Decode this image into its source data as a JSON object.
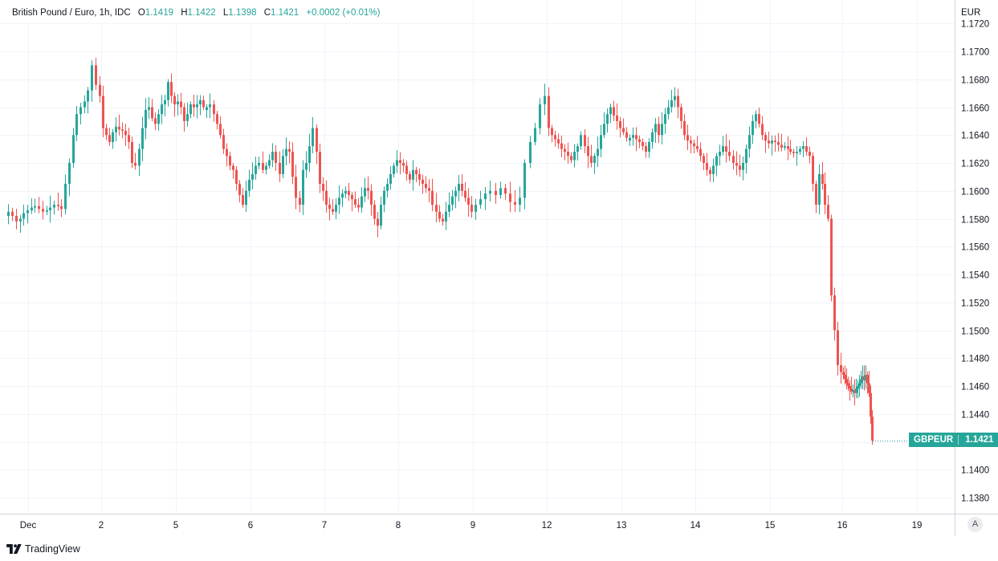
{
  "header": {
    "symbol_title": "British Pound / Euro, 1h, IDC",
    "open_label": "O",
    "open_value": "1.1419",
    "high_label": "H",
    "high_value": "1.1422",
    "low_label": "L",
    "low_value": "1.1398",
    "close_label": "C",
    "close_value": "1.1421",
    "change": "+0.0002 (+0.01%)"
  },
  "axis_currency": "EUR",
  "price_tag": {
    "symbol": "GBPEUR",
    "value": "1.1421"
  },
  "auto_scale_button": "A",
  "brand": "TradingView",
  "colors": {
    "up": "#26a69a",
    "down": "#ef5350",
    "grid": "#f0f3fa",
    "axis_text": "#131722"
  },
  "chart_data": {
    "type": "candlestick",
    "title": "British Pound / Euro, 1h, IDC",
    "x_tick_labels": [
      "Dec",
      "2",
      "5",
      "6",
      "7",
      "8",
      "9",
      "12",
      "13",
      "14",
      "15",
      "16",
      "19"
    ],
    "y_tick_labels": [
      "1.1720",
      "1.1700",
      "1.1680",
      "1.1660",
      "1.1640",
      "1.1620",
      "1.1600",
      "1.1580",
      "1.1560",
      "1.1540",
      "1.1520",
      "1.1500",
      "1.1480",
      "1.1460",
      "1.1440",
      "1.1420",
      "1.1400",
      "1.1380"
    ],
    "ylim": [
      1.137,
      1.1725
    ],
    "grid": true,
    "last_close": 1.1421,
    "approx_close_path": [
      {
        "session": "Dec",
        "values": [
          1.1585,
          1.1582,
          1.1578,
          1.158,
          1.1584,
          1.1586,
          1.1588,
          1.1589,
          1.1587,
          1.1585,
          1.1586,
          1.1588,
          1.159,
          1.1589,
          1.1587,
          1.1605,
          1.162,
          1.164,
          1.1655,
          1.166,
          1.1664,
          1.1672,
          1.169,
          1.1676,
          1.1668
        ]
      },
      {
        "session": "2",
        "values": [
          1.1645,
          1.164,
          1.1635,
          1.1642,
          1.1646,
          1.1644,
          1.1643,
          1.164,
          1.1635,
          1.162,
          1.1618,
          1.163,
          1.1645,
          1.1658,
          1.166,
          1.1652,
          1.1648,
          1.1655,
          1.1662,
          1.1665,
          1.1678,
          1.1668,
          1.1662
        ]
      },
      {
        "session": "5",
        "values": [
          1.1664,
          1.166,
          1.165,
          1.1655,
          1.1662,
          1.166,
          1.1662,
          1.1665,
          1.166,
          1.166,
          1.1662,
          1.1655,
          1.1648,
          1.164,
          1.163,
          1.1625,
          1.1618,
          1.1615,
          1.1605,
          1.1597,
          1.159,
          1.16,
          1.1608
        ]
      },
      {
        "session": "6",
        "values": [
          1.1612,
          1.1618,
          1.162,
          1.1615,
          1.1618,
          1.1622,
          1.1628,
          1.162,
          1.1612,
          1.1625,
          1.163,
          1.1628,
          1.161,
          1.1595,
          1.159,
          1.1615,
          1.162,
          1.1632,
          1.1645,
          1.1628,
          1.1605,
          1.16
        ]
      },
      {
        "session": "7",
        "values": [
          1.159,
          1.1587,
          1.1585,
          1.159,
          1.1595,
          1.1598,
          1.16,
          1.1597,
          1.1594,
          1.159,
          1.1588,
          1.1596,
          1.1602,
          1.16,
          1.159,
          1.158,
          1.1575,
          1.159,
          1.16,
          1.1605,
          1.1612,
          1.1618,
          1.1622
        ]
      },
      {
        "session": "8",
        "values": [
          1.162,
          1.1618,
          1.1612,
          1.1608,
          1.1615,
          1.1612,
          1.1608,
          1.1605,
          1.1602,
          1.16,
          1.159,
          1.1585,
          1.158,
          1.1578,
          1.1585,
          1.159,
          1.1596,
          1.16,
          1.1605,
          1.16,
          1.1595,
          1.159,
          1.1585
        ]
      },
      {
        "session": "9",
        "values": [
          1.159,
          1.1594,
          1.1598,
          1.16,
          1.1597,
          1.1602,
          1.1598,
          1.1592,
          1.159,
          1.1595,
          1.162,
          1.1635,
          1.1645,
          1.1662,
          1.1668
        ]
      },
      {
        "session": "12",
        "values": [
          1.1645,
          1.164,
          1.1637,
          1.1634,
          1.163,
          1.1628,
          1.1625,
          1.1622,
          1.1628,
          1.1632,
          1.164,
          1.1632,
          1.1625,
          1.162,
          1.1625,
          1.163,
          1.164,
          1.1648,
          1.1655,
          1.166,
          1.1654,
          1.165,
          1.1645
        ]
      },
      {
        "session": "13",
        "values": [
          1.1642,
          1.1638,
          1.1638,
          1.164,
          1.1637,
          1.1635,
          1.1632,
          1.1628,
          1.1635,
          1.1642,
          1.1648,
          1.164,
          1.1648,
          1.1655,
          1.166,
          1.1665,
          1.1668,
          1.166,
          1.165,
          1.164,
          1.1636,
          1.1634,
          1.1632
        ]
      },
      {
        "session": "14",
        "values": [
          1.163,
          1.1625,
          1.162,
          1.1615,
          1.1612,
          1.1618,
          1.1625,
          1.1628,
          1.1632,
          1.1628,
          1.1625,
          1.162,
          1.1618,
          1.1615,
          1.162,
          1.163,
          1.164,
          1.165,
          1.1655,
          1.1648,
          1.164,
          1.1636,
          1.1634
        ]
      },
      {
        "session": "15",
        "values": [
          1.1636,
          1.1635,
          1.1633,
          1.1631,
          1.1632,
          1.163,
          1.1628,
          1.1627,
          1.1628,
          1.163,
          1.1632,
          1.1628,
          1.1625,
          1.1605,
          1.159,
          1.1612,
          1.1605,
          1.159,
          1.158,
          1.1525,
          1.15,
          1.1475,
          1.147
        ]
      },
      {
        "session": "16",
        "values": [
          1.1468,
          1.1465,
          1.1462,
          1.146,
          1.1458,
          1.1456,
          1.1457,
          1.1455,
          1.1458,
          1.146,
          1.1462,
          1.1465,
          1.1467,
          1.1464,
          1.1468,
          1.1462,
          1.1455,
          1.1438,
          1.1421
        ]
      }
    ]
  }
}
